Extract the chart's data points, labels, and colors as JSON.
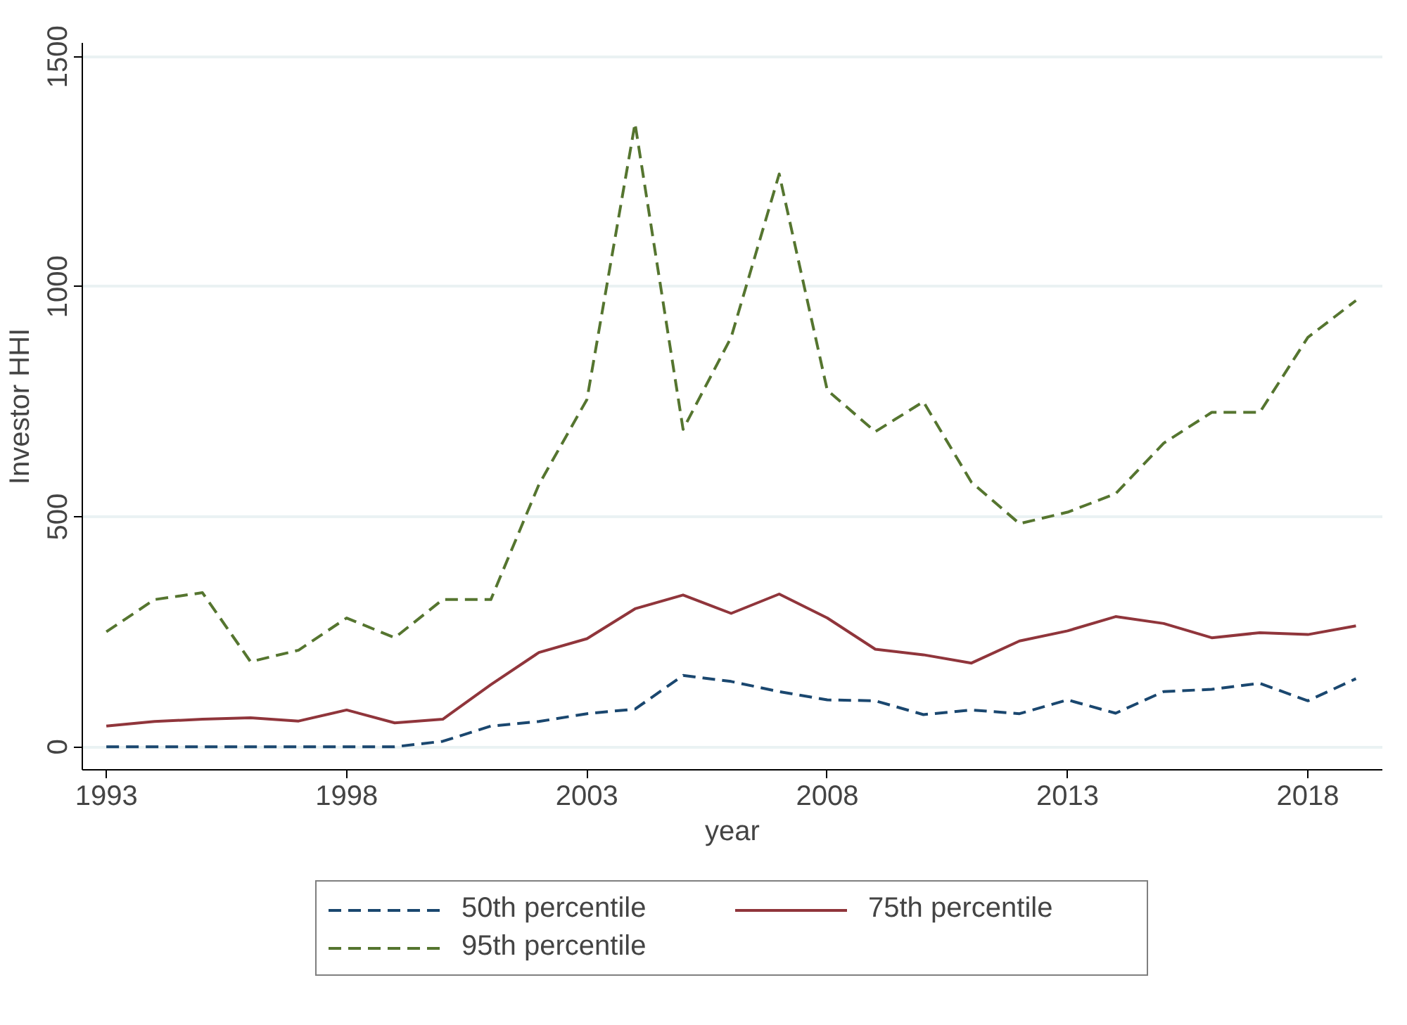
{
  "chart_data": {
    "type": "line",
    "xlabel": "year",
    "ylabel": "Investor HHI",
    "x": [
      1993,
      1994,
      1995,
      1996,
      1997,
      1998,
      1999,
      2000,
      2001,
      2002,
      2003,
      2004,
      2005,
      2006,
      2007,
      2008,
      2009,
      2010,
      2011,
      2012,
      2013,
      2014,
      2015,
      2016,
      2017,
      2018,
      2019
    ],
    "series": [
      {
        "name": "50th percentile",
        "color": "#1a476f",
        "line_style": "dashed",
        "values": [
          0,
          0,
          0,
          0,
          0,
          0,
          0,
          12,
          45,
          55,
          72,
          82,
          155,
          142,
          120,
          102,
          100,
          70,
          80,
          72,
          102,
          73,
          120,
          125,
          138,
          100,
          148
        ]
      },
      {
        "name": "75th percentile",
        "color": "#90353b",
        "line_style": "solid",
        "values": [
          45,
          55,
          60,
          63,
          56,
          80,
          52,
          60,
          135,
          205,
          235,
          300,
          330,
          290,
          332,
          280,
          212,
          200,
          182,
          230,
          252,
          283,
          268,
          237,
          248,
          244,
          263
        ]
      },
      {
        "name": "95th percentile",
        "color": "#55752f",
        "line_style": "dashed",
        "values": [
          250,
          320,
          335,
          185,
          210,
          280,
          237,
          320,
          320,
          570,
          755,
          1355,
          690,
          890,
          1245,
          775,
          685,
          750,
          575,
          485,
          510,
          550,
          660,
          727,
          727,
          890,
          970
        ]
      }
    ],
    "xlim": [
      1992.5,
      2019.55
    ],
    "ylim": [
      -50,
      1530
    ],
    "xticks": [
      1993,
      1998,
      2003,
      2008,
      2013,
      2018
    ],
    "yticks": [
      0,
      500,
      1000,
      1500
    ],
    "grid": "y",
    "legend": "bottom"
  }
}
